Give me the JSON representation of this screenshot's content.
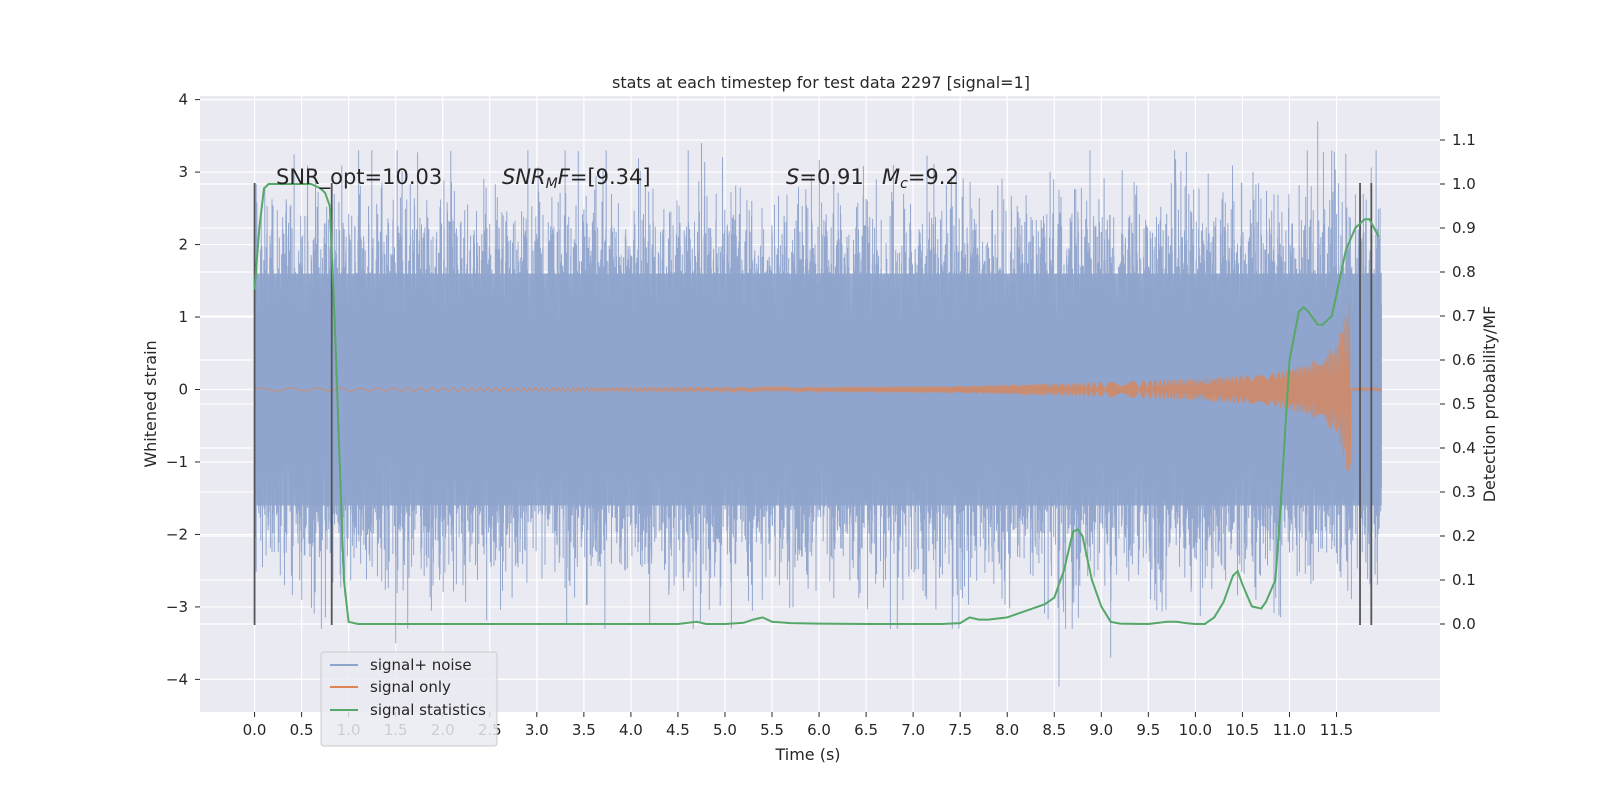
{
  "chart_data": {
    "type": "line",
    "title": "stats at each timestep for test data 2297 [signal=1]",
    "xlabel": "Time (s)",
    "ylabel_left": "Whitened strain",
    "ylabel_right": "Detection probability/MF",
    "xlim": [
      -0.58,
      12.6
    ],
    "ylim_left": [
      -4.45,
      4.05
    ],
    "ylim_right": [
      -0.2,
      1.2
    ],
    "x_ticks": [
      0.0,
      0.5,
      1.0,
      1.5,
      2.0,
      2.5,
      3.0,
      3.5,
      4.0,
      4.5,
      5.0,
      5.5,
      6.0,
      6.5,
      7.0,
      7.5,
      8.0,
      8.5,
      9.0,
      9.5,
      10.0,
      10.5,
      11.0,
      11.5
    ],
    "x_tick_labels": [
      "0.0",
      "0.5",
      "1.0",
      "1.5",
      "2.0",
      "2.5",
      "3.0",
      "3.5",
      "4.0",
      "4.5",
      "5.0",
      "5.5",
      "6.0",
      "6.5",
      "7.0",
      "7.5",
      "8.0",
      "8.5",
      "9.0",
      "9.5",
      "10.0",
      "10.5",
      "11.0",
      "11.5"
    ],
    "y_ticks_left": [
      -4,
      -3,
      -2,
      -1,
      0,
      1,
      2,
      3,
      4
    ],
    "y_tick_labels_left": [
      "−4",
      "−3",
      "−2",
      "−1",
      "0",
      "1",
      "2",
      "3",
      "4"
    ],
    "y_ticks_right": [
      0.0,
      0.1,
      0.2,
      0.3,
      0.4,
      0.5,
      0.6,
      0.7,
      0.8,
      0.9,
      1.0,
      1.1
    ],
    "y_tick_labels_right": [
      "0.0",
      "0.1",
      "0.2",
      "0.3",
      "0.4",
      "0.5",
      "0.6",
      "0.7",
      "0.8",
      "0.9",
      "1.0",
      "1.1"
    ],
    "grid": true,
    "legend_position": "lower-left",
    "annotations": {
      "snr_opt": "SNR_opt=10.03",
      "snr_mf_label": "SNR",
      "snr_mf_sub": "M",
      "snr_mf_rest": "F=[9.34]",
      "s_label": "S",
      "s_rest": "=0.91",
      "mc_label": "M",
      "mc_sub": "c",
      "mc_rest": "=9.2"
    },
    "series": [
      {
        "name": "signal+ noise",
        "axis": "left",
        "color": "#8fa4cc",
        "x_range": [
          0.0,
          11.98
        ],
        "core_band": [
          -1.6,
          1.6
        ],
        "notable_peaks": [
          {
            "x": 1.5,
            "y": -3.5
          },
          {
            "x": 4.2,
            "y": -3.25
          },
          {
            "x": 4.75,
            "y": 3.4
          },
          {
            "x": 8.55,
            "y": -4.1
          },
          {
            "x": 9.1,
            "y": -3.7
          },
          {
            "x": 11.3,
            "y": 3.7
          }
        ]
      },
      {
        "name": "signal only",
        "axis": "left",
        "color": "#dd8452",
        "x_range": [
          0.0,
          11.98
        ],
        "envelope": [
          {
            "x": 0.0,
            "amp": 0.02
          },
          {
            "x": 6.0,
            "amp": 0.03
          },
          {
            "x": 7.5,
            "amp": 0.05
          },
          {
            "x": 9.0,
            "amp": 0.1
          },
          {
            "x": 10.0,
            "amp": 0.15
          },
          {
            "x": 10.8,
            "amp": 0.22
          },
          {
            "x": 11.2,
            "amp": 0.35
          },
          {
            "x": 11.5,
            "amp": 0.6
          },
          {
            "x": 11.65,
            "amp": 1.3
          }
        ],
        "merger_time": 11.67
      },
      {
        "name": "signal statistics",
        "axis": "right",
        "color": "#55a868",
        "x": [
          0.0,
          0.05,
          0.1,
          0.15,
          0.2,
          0.3,
          0.4,
          0.5,
          0.6,
          0.7,
          0.75,
          0.8,
          0.85,
          0.9,
          0.95,
          1.0,
          1.1,
          1.2,
          1.5,
          1.8,
          2.0,
          2.5,
          3.0,
          3.5,
          4.0,
          4.5,
          4.7,
          4.8,
          5.0,
          5.2,
          5.3,
          5.4,
          5.5,
          5.7,
          6.0,
          6.5,
          7.0,
          7.3,
          7.5,
          7.6,
          7.7,
          7.8,
          8.0,
          8.2,
          8.4,
          8.5,
          8.6,
          8.7,
          8.75,
          8.8,
          8.9,
          9.0,
          9.1,
          9.2,
          9.5,
          9.7,
          9.8,
          9.9,
          10.0,
          10.1,
          10.2,
          10.3,
          10.4,
          10.45,
          10.5,
          10.6,
          10.7,
          10.75,
          10.85,
          10.9,
          11.0,
          11.1,
          11.15,
          11.2,
          11.3,
          11.35,
          11.45,
          11.5,
          11.6,
          11.7,
          11.8,
          11.85,
          11.9,
          11.95
        ],
        "y": [
          0.76,
          0.9,
          0.99,
          1.0,
          1.0,
          1.0,
          1.0,
          1.0,
          1.0,
          0.99,
          0.98,
          0.95,
          0.7,
          0.4,
          0.1,
          0.005,
          0.0,
          0.0,
          0.0,
          0.0,
          0.0,
          0.0,
          0.0,
          0.0,
          0.0,
          0.0,
          0.005,
          0.0,
          0.0,
          0.003,
          0.01,
          0.015,
          0.005,
          0.002,
          0.001,
          0.0,
          0.0,
          0.0,
          0.002,
          0.015,
          0.01,
          0.01,
          0.015,
          0.03,
          0.045,
          0.06,
          0.12,
          0.21,
          0.215,
          0.2,
          0.1,
          0.04,
          0.005,
          0.001,
          0.0,
          0.005,
          0.005,
          0.002,
          0.0,
          0.0,
          0.015,
          0.05,
          0.11,
          0.12,
          0.09,
          0.04,
          0.035,
          0.05,
          0.1,
          0.25,
          0.6,
          0.71,
          0.72,
          0.71,
          0.68,
          0.68,
          0.7,
          0.75,
          0.85,
          0.9,
          0.92,
          0.92,
          0.9,
          0.88
        ]
      }
    ],
    "vertical_markers": [
      {
        "x": 0.0,
        "y": [
          -3.25,
          2.85
        ]
      },
      {
        "x": 0.82,
        "y": [
          -3.25,
          2.85
        ]
      },
      {
        "x": 11.75,
        "y": [
          -3.25,
          2.85
        ]
      },
      {
        "x": 11.87,
        "y": [
          -3.25,
          2.85
        ]
      }
    ],
    "marker_color": "#555555",
    "axes_bg": "#eaeaf2",
    "grid_color": "#ffffff"
  }
}
